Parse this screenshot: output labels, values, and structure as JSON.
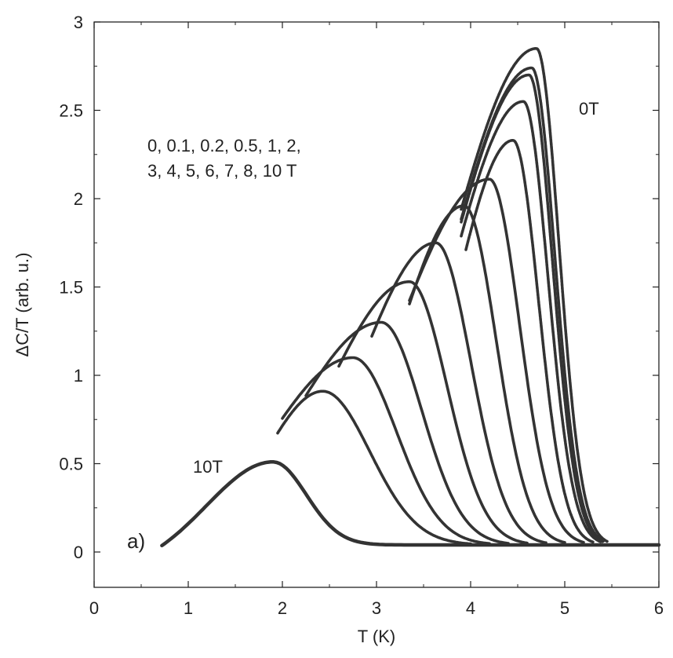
{
  "chart_data": {
    "type": "line",
    "xlabel": "T (K)",
    "ylabel": "ΔC/T (arb. u.)",
    "xlim": [
      0,
      6
    ],
    "ylim": [
      -0.2,
      3
    ],
    "x_ticks": [
      0,
      1,
      2,
      3,
      4,
      5,
      6
    ],
    "x_tick_labels": [
      "0",
      "1",
      "2",
      "3",
      "4",
      "5",
      "6"
    ],
    "y_ticks": [
      0,
      0.5,
      1,
      1.5,
      2,
      2.5,
      3
    ],
    "y_tick_labels": [
      "0",
      "0.5",
      "1",
      "1.5",
      "2",
      "2.5",
      "3"
    ],
    "grid": false,
    "legend": "none",
    "line_color": "#333333",
    "annotations": {
      "field_list_line1": "0, 0.1, 0.2, 0.5, 1, 2,",
      "field_list_line2": "3, 4, 5, 6, 7, 8, 10 T",
      "top_label": "0T",
      "bottom_label": "10T",
      "panel_label": "a)"
    },
    "baseline": 0.04,
    "series": [
      {
        "field_T": 0,
        "x_start": 3.9,
        "peak_x": 4.7,
        "peak_y": 2.85,
        "x_end": 5.45
      },
      {
        "field_T": 0.1,
        "x_start": 3.9,
        "peak_x": 4.65,
        "peak_y": 2.74,
        "x_end": 5.42
      },
      {
        "field_T": 0.2,
        "x_start": 3.9,
        "peak_x": 4.62,
        "peak_y": 2.7,
        "x_end": 5.4
      },
      {
        "field_T": 0.5,
        "x_start": 3.9,
        "peak_x": 4.56,
        "peak_y": 2.55,
        "x_end": 5.38
      },
      {
        "field_T": 1,
        "x_start": 3.95,
        "peak_x": 4.45,
        "peak_y": 2.33,
        "x_end": 5.3
      },
      {
        "field_T": 2,
        "x_start": 3.35,
        "peak_x": 4.2,
        "peak_y": 2.11,
        "x_end": 5.2
      },
      {
        "field_T": 3,
        "x_start": 3.35,
        "peak_x": 3.93,
        "peak_y": 1.96,
        "x_end": 5.0
      },
      {
        "field_T": 4,
        "x_start": 2.95,
        "peak_x": 3.63,
        "peak_y": 1.75,
        "x_end": 4.8
      },
      {
        "field_T": 5,
        "x_start": 2.6,
        "peak_x": 3.35,
        "peak_y": 1.53,
        "x_end": 4.6
      },
      {
        "field_T": 6,
        "x_start": 2.25,
        "peak_x": 3.05,
        "peak_y": 1.3,
        "x_end": 4.4
      },
      {
        "field_T": 7,
        "x_start": 2.0,
        "peak_x": 2.75,
        "peak_y": 1.1,
        "x_end": 4.2
      },
      {
        "field_T": 8,
        "x_start": 1.95,
        "peak_x": 2.43,
        "peak_y": 0.91,
        "x_end": 4.0
      },
      {
        "field_T": 10,
        "x_start": 0.72,
        "peak_x": 1.9,
        "peak_y": 0.51,
        "x_end": 6.0
      }
    ]
  }
}
